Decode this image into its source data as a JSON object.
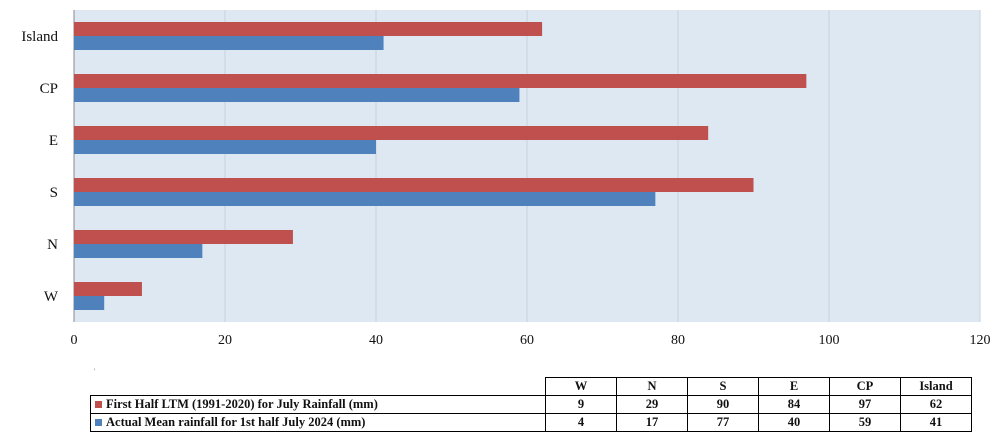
{
  "colors": {
    "plot_background": "#dde8f3",
    "gridline": "#c9d2dc",
    "axis": "#8a8a8a",
    "ltm_series": "#c0504d",
    "actual_series": "#4f81bd"
  },
  "chart_data": {
    "type": "bar",
    "orientation": "horizontal",
    "categories": [
      "Island",
      "CP",
      "E",
      "S",
      "N",
      "W"
    ],
    "series": [
      {
        "name": "First Half LTM (1991-2020) for July Rainfall (mm)",
        "values": [
          62,
          97,
          84,
          90,
          29,
          9
        ]
      },
      {
        "name": "Actual Mean rainfall for 1st half July 2024 (mm)",
        "values": [
          41,
          59,
          40,
          77,
          17,
          4
        ]
      }
    ],
    "xlim": [
      0,
      120
    ],
    "xticks": [
      "0",
      "20",
      "40",
      "60",
      "80",
      "100",
      "120"
    ],
    "grid": true,
    "legend": "bottom data table"
  },
  "table": {
    "columns": [
      "W",
      "N",
      "S",
      "E",
      "CP",
      "Island"
    ],
    "rows": [
      {
        "label": "First Half LTM (1991-2020) for July Rainfall (mm)",
        "color": "#c0504d",
        "values": [
          "9",
          "29",
          "90",
          "84",
          "97",
          "62"
        ]
      },
      {
        "label": "Actual Mean rainfall for 1st half July 2024 (mm)",
        "color": "#4f81bd",
        "values": [
          "4",
          "17",
          "77",
          "40",
          "59",
          "41"
        ]
      }
    ]
  }
}
